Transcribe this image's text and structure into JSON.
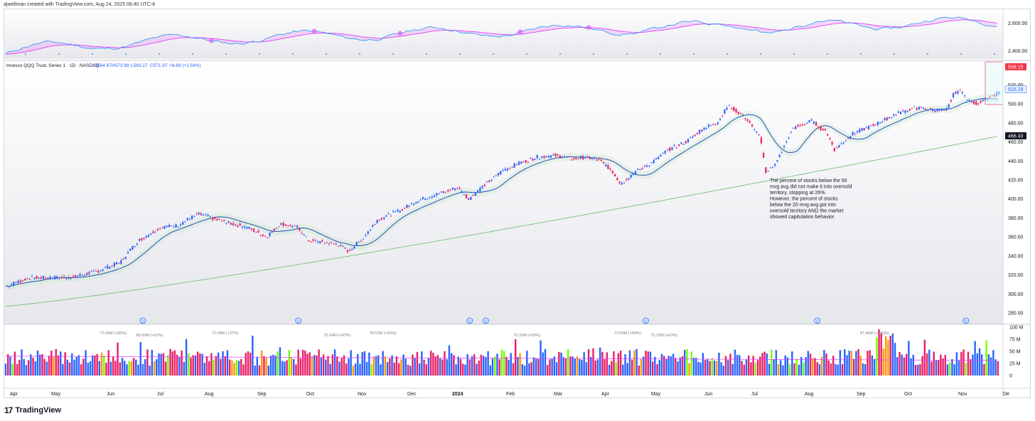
{
  "header": {
    "credit": "ajwellman created with TradingView.com, Aug 24, 2025 06:40 UTC-6"
  },
  "footer": {
    "brand": "TradingView",
    "brand_mark": "17"
  },
  "colors": {
    "up": "#2962ff",
    "down": "#e91e63",
    "ma_fast": "#1e53b5",
    "ma_slow": "#66bb6a",
    "breadth_line": "#2196f3",
    "breadth_avg": "#e040fb",
    "vol_green": "#76ff03",
    "vol_orange": "#ff9800"
  },
  "legend": {
    "symbol": "Invesco QQQ Trust, Series 1 · 1D · NASDAQ",
    "o": "O564.67",
    "h": "H573.99",
    "l": "L563.27",
    "c": "C571.97",
    "chg": "+8.69 (+1.54%)"
  },
  "annotation": {
    "lines": [
      "The percent of stocks below the 50",
      "mvg avg did not make it into oversold",
      "territory, stopping at 26%.",
      "",
      "However, the percent of stocks",
      "below the 20 mvg avg got into",
      "oversold territory AND the market",
      "showed capitulation behavior."
    ]
  },
  "chart_data": {
    "type": "candlestick",
    "x_ticks": [
      "Apr",
      "May",
      "Jun",
      "Jul",
      "Aug",
      "Sep",
      "Oct",
      "Nov",
      "Dec",
      "2024",
      "Feb",
      "Mar",
      "Apr",
      "May",
      "Jun",
      "Jul",
      "Aug",
      "Sep",
      "Oct",
      "Nov",
      "De"
    ],
    "price_axis": {
      "ticks": [
        280,
        300,
        320,
        340,
        360,
        380,
        400,
        420,
        440,
        460,
        480,
        500,
        520
      ],
      "range": [
        268,
        545
      ]
    },
    "price_path": [
      [
        0,
        308
      ],
      [
        20,
        317
      ],
      [
        40,
        317
      ],
      [
        60,
        318
      ],
      [
        80,
        324
      ],
      [
        100,
        333
      ],
      [
        115,
        355
      ],
      [
        135,
        370
      ],
      [
        150,
        372
      ],
      [
        168,
        384
      ],
      [
        175,
        382
      ],
      [
        190,
        376
      ],
      [
        205,
        372
      ],
      [
        215,
        368
      ],
      [
        228,
        360
      ],
      [
        240,
        374
      ],
      [
        255,
        370
      ],
      [
        265,
        356
      ],
      [
        280,
        354
      ],
      [
        290,
        352
      ],
      [
        300,
        345
      ],
      [
        312,
        358
      ],
      [
        325,
        378
      ],
      [
        345,
        388
      ],
      [
        360,
        398
      ],
      [
        380,
        406
      ],
      [
        395,
        412
      ],
      [
        405,
        400
      ],
      [
        420,
        416
      ],
      [
        435,
        430
      ],
      [
        450,
        438
      ],
      [
        465,
        444
      ],
      [
        480,
        446
      ],
      [
        495,
        442
      ],
      [
        508,
        444
      ],
      [
        520,
        440
      ],
      [
        530,
        430
      ],
      [
        538,
        416
      ],
      [
        550,
        428
      ],
      [
        565,
        438
      ],
      [
        580,
        452
      ],
      [
        595,
        460
      ],
      [
        610,
        474
      ],
      [
        622,
        480
      ],
      [
        632,
        498
      ],
      [
        640,
        492
      ],
      [
        648,
        484
      ],
      [
        660,
        464
      ],
      [
        665,
        428
      ],
      [
        675,
        440
      ],
      [
        688,
        474
      ],
      [
        705,
        482
      ],
      [
        718,
        470
      ],
      [
        725,
        452
      ],
      [
        740,
        468
      ],
      [
        760,
        478
      ],
      [
        780,
        490
      ],
      [
        795,
        496
      ],
      [
        810,
        494
      ],
      [
        822,
        492
      ],
      [
        830,
        512
      ],
      [
        835,
        514
      ],
      [
        840,
        506
      ],
      [
        850,
        500
      ],
      [
        860,
        506
      ],
      [
        869,
        512
      ]
    ],
    "price_labels": [
      {
        "value": "539.15",
        "type": "marker-high"
      },
      {
        "value": "515.29",
        "type": "last-price"
      },
      {
        "value": "466.43",
        "type": "ma-200"
      }
    ],
    "breadth_axis": {
      "ticks": [
        "2,600.00",
        "2,400.00"
      ]
    },
    "dividend_marker": "D",
    "dividend_dates_index": [
      60,
      128,
      203,
      210,
      280,
      355,
      420
    ],
    "volume_axis": {
      "ticks": [
        "100 M",
        "75 M",
        "50 M",
        "25 M",
        "0"
      ]
    },
    "volume_labels": [
      "72.65M (+36%)",
      "80.93M (+51%)",
      "72.68M (+37%)",
      "75.04M (+47%)",
      "78.62M (+50%)",
      "70.32M (+55%)",
      "73.09M (+59%)",
      "75.23M (+63%)",
      "87.46M (+146%)",
      "51.46M (+88%)"
    ],
    "volume_label_positions": [
      47,
      63,
      96,
      145,
      165,
      228,
      272,
      288,
      380,
      464
    ]
  }
}
